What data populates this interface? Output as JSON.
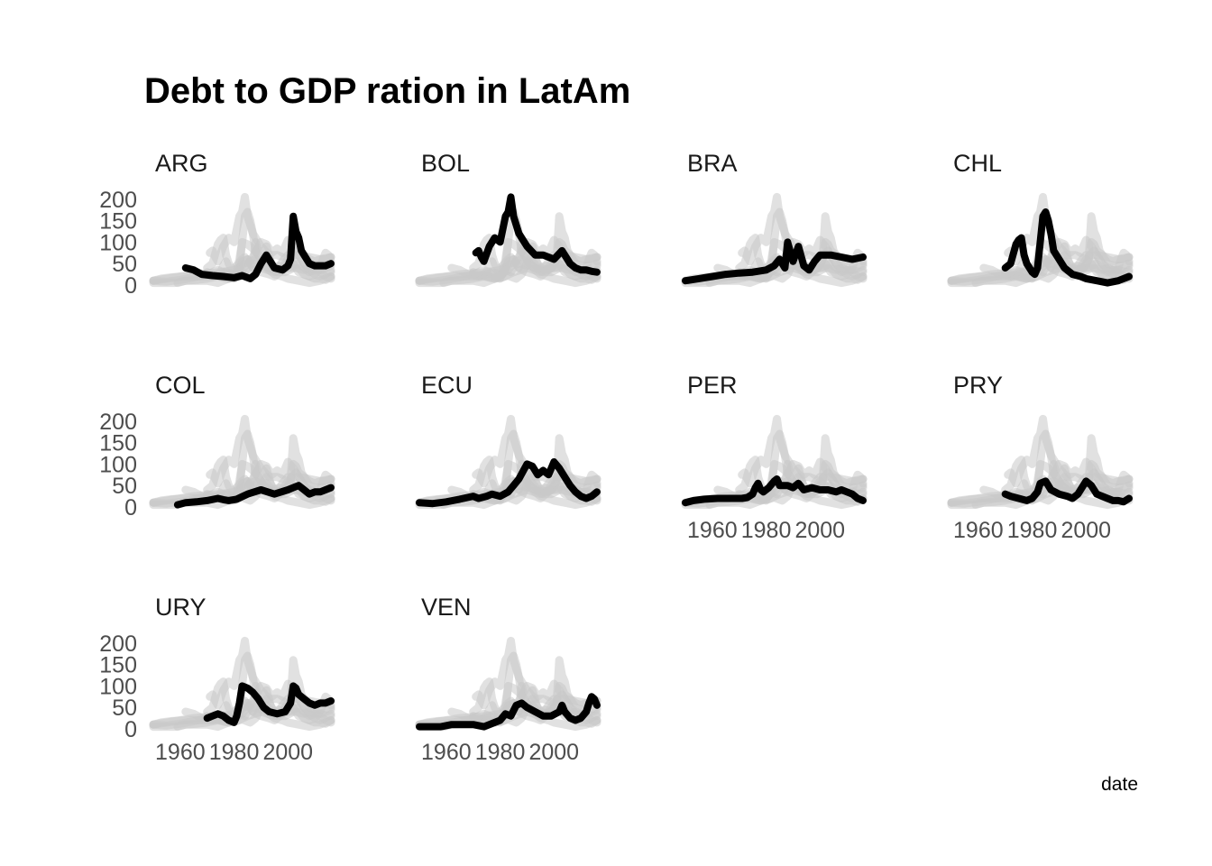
{
  "chart_data": {
    "type": "line",
    "title": "Debt to GDP ration in LatAm",
    "xlabel": "date",
    "ylabel": "",
    "caption": "date",
    "xlim": [
      1950,
      2017
    ],
    "ylim": [
      0,
      210
    ],
    "x_ticks": [
      "1960",
      "1980",
      "2000"
    ],
    "y_ticks": [
      "0",
      "50",
      "100",
      "150",
      "200"
    ],
    "grid": false,
    "legend": "none",
    "colors": {
      "highlight": "#000000",
      "background_series": "#c8c8c8"
    },
    "panels": [
      {
        "name": "ARG",
        "x": [
          1962,
          1965,
          1968,
          1972,
          1976,
          1980,
          1983,
          1986,
          1988,
          1990,
          1992,
          1995,
          1998,
          2000,
          2001,
          2002,
          2003,
          2004,
          2005,
          2006,
          2008,
          2010,
          2012,
          2014,
          2016
        ],
        "y": [
          40,
          35,
          25,
          22,
          20,
          17,
          22,
          15,
          25,
          50,
          70,
          40,
          35,
          45,
          60,
          160,
          125,
          110,
          80,
          70,
          50,
          45,
          45,
          45,
          50
        ]
      },
      {
        "name": "BOL",
        "x": [
          1971,
          1972,
          1973,
          1974,
          1976,
          1978,
          1980,
          1982,
          1983,
          1984,
          1985,
          1987,
          1990,
          1993,
          1996,
          2000,
          2003,
          2005,
          2006,
          2008,
          2010,
          2012,
          2014,
          2016
        ],
        "y": [
          75,
          80,
          65,
          55,
          90,
          110,
          100,
          160,
          170,
          205,
          160,
          120,
          90,
          70,
          70,
          60,
          80,
          60,
          50,
          40,
          35,
          35,
          32,
          30
        ]
      },
      {
        "name": "BRA",
        "x": [
          1950,
          1955,
          1960,
          1965,
          1970,
          1975,
          1980,
          1983,
          1985,
          1987,
          1988,
          1990,
          1992,
          1994,
          1996,
          1998,
          2000,
          2004,
          2008,
          2012,
          2016
        ],
        "y": [
          10,
          15,
          20,
          25,
          28,
          30,
          35,
          45,
          60,
          40,
          100,
          55,
          90,
          45,
          35,
          55,
          70,
          70,
          65,
          60,
          65
        ]
      },
      {
        "name": "CHL",
        "x": [
          1970,
          1972,
          1974,
          1975,
          1976,
          1977,
          1978,
          1980,
          1981,
          1982,
          1983,
          1984,
          1985,
          1986,
          1987,
          1988,
          1990,
          1992,
          1995,
          1998,
          2000,
          2004,
          2008,
          2012,
          2016
        ],
        "y": [
          40,
          50,
          95,
          105,
          110,
          70,
          50,
          30,
          25,
          40,
          100,
          160,
          170,
          150,
          120,
          80,
          60,
          40,
          25,
          20,
          15,
          10,
          5,
          10,
          20
        ]
      },
      {
        "name": "COL",
        "x": [
          1959,
          1962,
          1966,
          1970,
          1974,
          1976,
          1978,
          1981,
          1985,
          1990,
          1995,
          2000,
          2002,
          2004,
          2006,
          2008,
          2010,
          2012,
          2014,
          2016
        ],
        "y": [
          5,
          10,
          12,
          15,
          20,
          17,
          15,
          18,
          30,
          40,
          30,
          40,
          45,
          50,
          40,
          30,
          35,
          35,
          40,
          45
        ]
      },
      {
        "name": "ECU",
        "x": [
          1950,
          1955,
          1960,
          1965,
          1970,
          1972,
          1975,
          1977,
          1980,
          1983,
          1985,
          1987,
          1990,
          1992,
          1994,
          1996,
          1998,
          2000,
          2002,
          2004,
          2006,
          2008,
          2010,
          2012,
          2014,
          2016
        ],
        "y": [
          10,
          8,
          12,
          18,
          25,
          20,
          25,
          30,
          25,
          35,
          50,
          65,
          100,
          95,
          75,
          85,
          75,
          105,
          90,
          70,
          50,
          35,
          25,
          20,
          25,
          35
        ]
      },
      {
        "name": "PER",
        "x": [
          1950,
          1953,
          1957,
          1962,
          1967,
          1971,
          1973,
          1975,
          1976,
          1977,
          1978,
          1979,
          1981,
          1983,
          1984,
          1985,
          1988,
          1990,
          1992,
          1994,
          1997,
          2000,
          2003,
          2006,
          2008,
          2010,
          2012,
          2014,
          2016
        ],
        "y": [
          10,
          15,
          18,
          20,
          20,
          20,
          22,
          30,
          45,
          55,
          40,
          35,
          45,
          60,
          65,
          50,
          50,
          45,
          55,
          40,
          45,
          40,
          40,
          35,
          40,
          35,
          30,
          20,
          15
        ]
      },
      {
        "name": "PRY",
        "x": [
          1970,
          1972,
          1975,
          1978,
          1980,
          1982,
          1983,
          1985,
          1987,
          1990,
          1993,
          1995,
          1997,
          2000,
          2002,
          2004,
          2006,
          2008,
          2010,
          2012,
          2014,
          2016
        ],
        "y": [
          30,
          25,
          20,
          15,
          20,
          35,
          55,
          60,
          40,
          30,
          25,
          20,
          30,
          60,
          50,
          30,
          25,
          20,
          15,
          15,
          12,
          20
        ]
      },
      {
        "name": "URY",
        "x": [
          1970,
          1972,
          1974,
          1976,
          1978,
          1980,
          1981,
          1982,
          1983,
          1985,
          1987,
          1989,
          1991,
          1993,
          1996,
          1999,
          2001,
          2002,
          2003,
          2004,
          2006,
          2008,
          2010,
          2012,
          2014,
          2016
        ],
        "y": [
          25,
          30,
          35,
          30,
          20,
          15,
          30,
          60,
          100,
          95,
          85,
          70,
          50,
          40,
          35,
          40,
          60,
          100,
          95,
          80,
          70,
          60,
          55,
          60,
          60,
          65
        ]
      },
      {
        "name": "VEN",
        "x": [
          1950,
          1955,
          1958,
          1962,
          1966,
          1970,
          1974,
          1978,
          1980,
          1982,
          1984,
          1986,
          1988,
          1990,
          1993,
          1996,
          1999,
          2002,
          2003,
          2004,
          2006,
          2008,
          2010,
          2012,
          2013,
          2014,
          2015,
          2016
        ],
        "y": [
          5,
          5,
          5,
          10,
          10,
          10,
          5,
          15,
          20,
          35,
          30,
          55,
          60,
          50,
          40,
          30,
          30,
          40,
          55,
          40,
          25,
          20,
          25,
          40,
          60,
          75,
          70,
          55
        ]
      }
    ]
  }
}
